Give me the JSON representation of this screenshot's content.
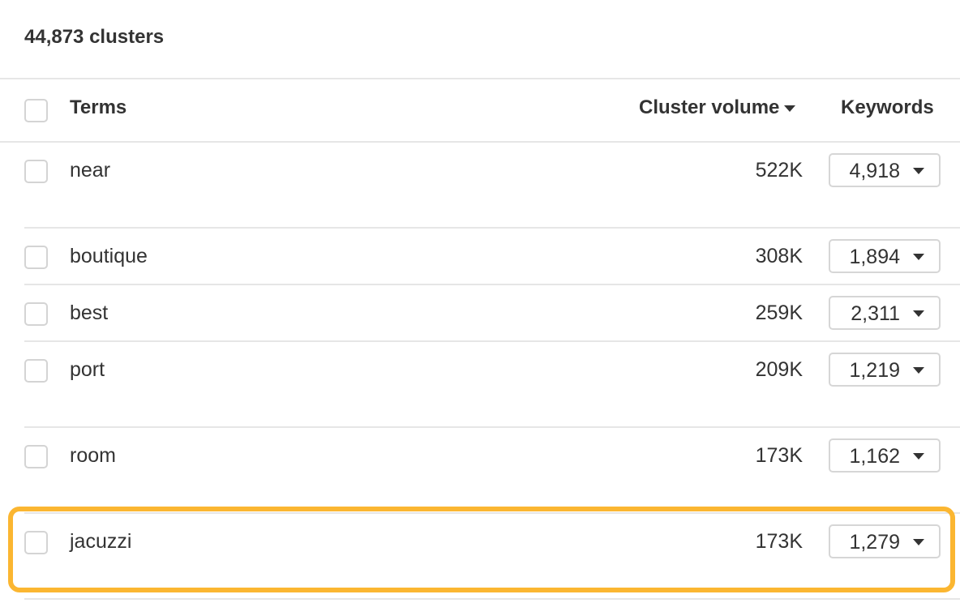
{
  "summary": {
    "count_label": "44,873 clusters"
  },
  "table": {
    "headers": {
      "terms": "Terms",
      "cluster_volume": "Cluster volume",
      "keywords": "Keywords"
    },
    "sort": {
      "column": "cluster_volume",
      "direction": "descending"
    },
    "rows": [
      {
        "term": "near",
        "volume": "522K",
        "keywords": "4,918"
      },
      {
        "term": "boutique",
        "volume": "308K",
        "keywords": "1,894"
      },
      {
        "term": "best",
        "volume": "259K",
        "keywords": "2,311"
      },
      {
        "term": "port",
        "volume": "209K",
        "keywords": "1,219"
      },
      {
        "term": "room",
        "volume": "173K",
        "keywords": "1,162"
      },
      {
        "term": "jacuzzi",
        "volume": "173K",
        "keywords": "1,279",
        "highlighted": true
      }
    ]
  },
  "colors": {
    "highlight": "#fbb631",
    "divider": "#e6e6e6",
    "text": "#333333"
  }
}
